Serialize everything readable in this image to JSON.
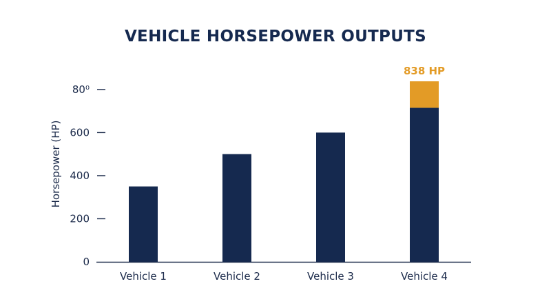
{
  "chart_data": {
    "type": "bar",
    "title": "VEHICLE HORSEPOWER OUTPUTS",
    "xlabel": "",
    "ylabel": "Horsepower (HP)",
    "categories": [
      "Vehicle 1",
      "Vehicle 2",
      "Vehicle 3",
      "Vehicle 4"
    ],
    "values": [
      350,
      500,
      600,
      838
    ],
    "base_values": [
      350,
      500,
      600,
      715
    ],
    "highlight": {
      "category": "Vehicle 4",
      "label": "838 HP",
      "color": "#e39b26"
    },
    "yticks": [
      0,
      200,
      400,
      600,
      800
    ],
    "ytick_labels": [
      "0",
      "200",
      "400",
      "600",
      "80⁰"
    ],
    "ylim": [
      0,
      838
    ],
    "grid": false,
    "legend": "none",
    "colors": {
      "bar": "#15294f",
      "highlight": "#e39b26",
      "axis": "#1b2a4a"
    }
  }
}
